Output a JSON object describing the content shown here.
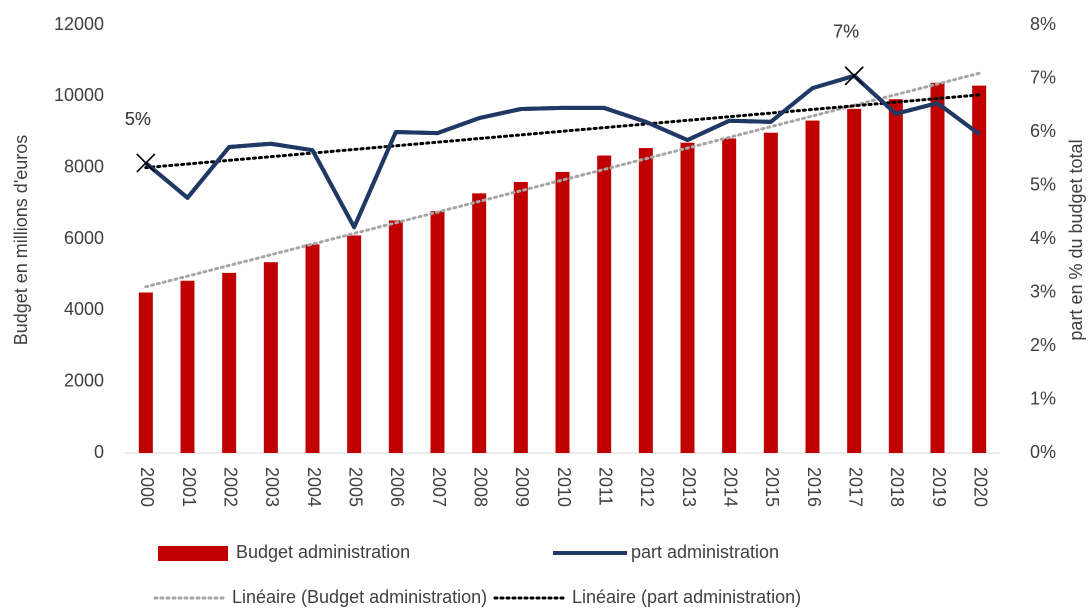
{
  "chart_data": {
    "type": "bar-line",
    "y_label": "Budget en millions d'euros",
    "y2_label": "part en % du budget total",
    "categories": [
      "2000",
      "2001",
      "2002",
      "2003",
      "2004",
      "2005",
      "2006",
      "2007",
      "2008",
      "2009",
      "2010",
      "2011",
      "2012",
      "2013",
      "2014",
      "2015",
      "2016",
      "2017",
      "2018",
      "2019",
      "2020"
    ],
    "series": [
      {
        "name": "Budget administration",
        "type": "bar",
        "color": "#c00000",
        "values": [
          4500,
          4830,
          5050,
          5350,
          5850,
          6100,
          6520,
          6780,
          7280,
          7600,
          7880,
          8340,
          8550,
          8700,
          8820,
          8980,
          9320,
          9650,
          9920,
          10380,
          10300
        ],
        "trendline": {
          "name": "Linéaire (Budget administration)",
          "color": "#a6a6a6"
        }
      },
      {
        "name": "part administration",
        "type": "line",
        "axis": "y2",
        "color": "#203864",
        "values": [
          5.42,
          4.77,
          5.72,
          5.78,
          5.66,
          4.22,
          6.0,
          5.98,
          6.26,
          6.43,
          6.45,
          6.45,
          6.19,
          5.85,
          6.21,
          6.19,
          6.82,
          7.05,
          6.34,
          6.54,
          5.96
        ],
        "value_labels": [
          "5%",
          null,
          null,
          null,
          null,
          null,
          null,
          null,
          null,
          null,
          null,
          null,
          null,
          null,
          null,
          null,
          null,
          "7%",
          null,
          null,
          null
        ],
        "trendline": {
          "name": "Linéaire (part administration)",
          "color": "#000000"
        }
      }
    ],
    "ylim": [
      0,
      12000
    ],
    "yticks": [
      0,
      2000,
      4000,
      6000,
      8000,
      10000,
      12000
    ],
    "y2lim": [
      0,
      8
    ],
    "y2ticks": [
      {
        "value": 0,
        "label": "0%"
      },
      {
        "value": 1,
        "label": "1%"
      },
      {
        "value": 2,
        "label": "2%"
      },
      {
        "value": 3,
        "label": "3%"
      },
      {
        "value": 4,
        "label": "4%"
      },
      {
        "value": 5,
        "label": "5%"
      },
      {
        "value": 6,
        "label": "6%"
      },
      {
        "value": 7,
        "label": "7%"
      },
      {
        "value": 8,
        "label": "8%"
      }
    ],
    "grid": false
  }
}
